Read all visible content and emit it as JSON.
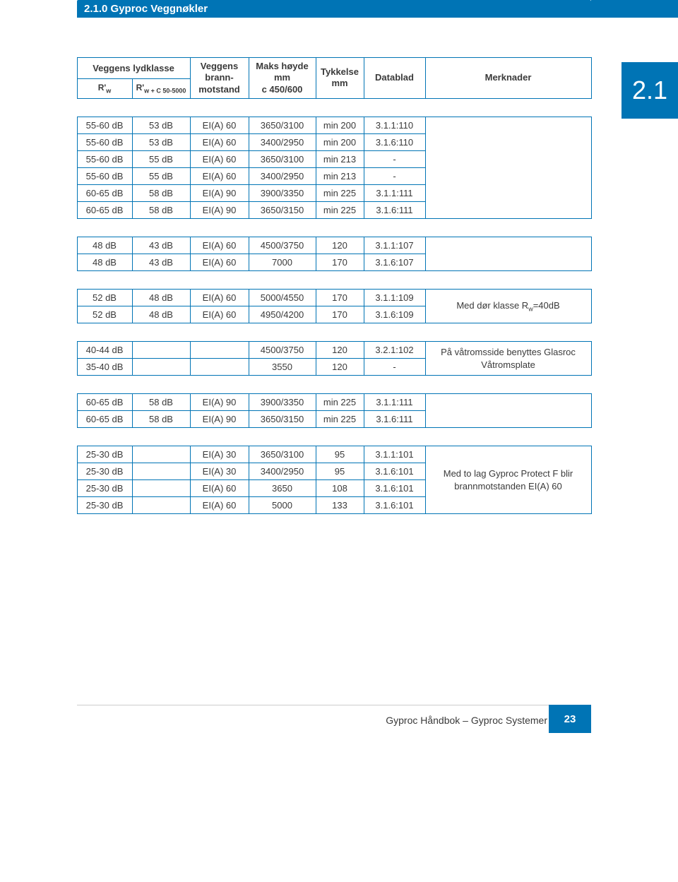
{
  "title": "2.1.0 Gyproc Veggnøkler",
  "section_badge": "2.1",
  "colors": {
    "primary": "#0074b5",
    "text": "#3a3a3a",
    "bg": "#ffffff"
  },
  "headers": {
    "lydklasse_top": "Veggens lydklasse",
    "rw": "R'",
    "rw_sub": "w",
    "rwc": "R'",
    "rwc_sub": "w + C 50-5000",
    "brann": "Veggens brann-motstand",
    "hoyde": "Maks høyde mm c 450/600",
    "tykkelse": "Tykkelse mm",
    "datablad": "Datablad",
    "merknader": "Merknader"
  },
  "groups": [
    {
      "rows": [
        [
          "55-60 dB",
          "53 dB",
          "EI(A) 60",
          "3650/3100",
          "min 200",
          "3.1.1:110"
        ],
        [
          "55-60 dB",
          "53 dB",
          "EI(A) 60",
          "3400/2950",
          "min 200",
          "3.1.6:110"
        ],
        [
          "55-60 dB",
          "55 dB",
          "EI(A) 60",
          "3650/3100",
          "min 213",
          "-"
        ],
        [
          "55-60 dB",
          "55 dB",
          "EI(A) 60",
          "3400/2950",
          "min 213",
          "-"
        ],
        [
          "60-65 dB",
          "58 dB",
          "EI(A) 90",
          "3900/3350",
          "min 225",
          "3.1.1:111"
        ],
        [
          "60-65 dB",
          "58 dB",
          "EI(A) 90",
          "3650/3150",
          "min 225",
          "3.1.6:111"
        ]
      ],
      "note": ""
    },
    {
      "rows": [
        [
          "48 dB",
          "43 dB",
          "EI(A) 60",
          "4500/3750",
          "120",
          "3.1.1:107"
        ],
        [
          "48 dB",
          "43 dB",
          "EI(A) 60",
          "7000",
          "170",
          "3.1.6:107"
        ]
      ],
      "note": ""
    },
    {
      "rows": [
        [
          "52 dB",
          "48 dB",
          "EI(A) 60",
          "5000/4550",
          "170",
          "3.1.1:109"
        ],
        [
          "52 dB",
          "48 dB",
          "EI(A) 60",
          "4950/4200",
          "170",
          "3.1.6:109"
        ]
      ],
      "note": "Med dør klasse Rw=40dB"
    },
    {
      "rows": [
        [
          "40-44 dB",
          "",
          "",
          "4500/3750",
          "120",
          "3.2.1:102"
        ],
        [
          "35-40 dB",
          "",
          "",
          "3550",
          "120",
          "-"
        ]
      ],
      "note": "På våtromsside benyttes Glasroc Våtromsplate"
    },
    {
      "rows": [
        [
          "60-65 dB",
          "58 dB",
          "EI(A) 90",
          "3900/3350",
          "min 225",
          "3.1.1:111"
        ],
        [
          "60-65 dB",
          "58 dB",
          "EI(A) 90",
          "3650/3150",
          "min 225",
          "3.1.6:111"
        ]
      ],
      "note": ""
    },
    {
      "rows": [
        [
          "25-30 dB",
          "",
          "EI(A) 30",
          "3650/3100",
          "95",
          "3.1.1:101"
        ],
        [
          "25-30 dB",
          "",
          "EI(A) 30",
          "3400/2950",
          "95",
          "3.1.6:101"
        ],
        [
          "25-30 dB",
          "",
          "EI(A) 60",
          "3650",
          "108",
          "3.1.6:101"
        ],
        [
          "25-30 dB",
          "",
          "EI(A) 60",
          "5000",
          "133",
          "3.1.6:101"
        ]
      ],
      "note": "Med to lag Gyproc Protect F blir brannmotstanden EI(A) 60"
    }
  ],
  "footer": {
    "text": "Gyproc Håndbok – Gyproc Systemer",
    "page": "23"
  }
}
